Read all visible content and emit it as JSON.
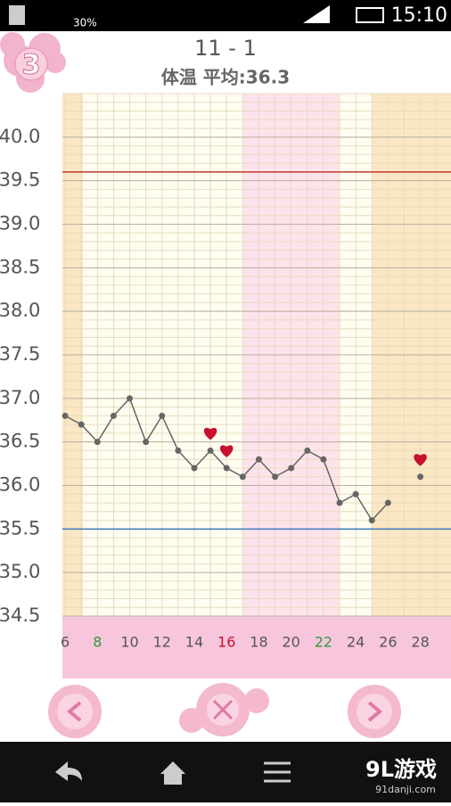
{
  "status_bar": {
    "battery_left": "30%",
    "time": "15:10"
  },
  "header": {
    "badge": "3",
    "title": "11 - 1",
    "subtitle": "体温 平均:36.3"
  },
  "chart_data": {
    "type": "line",
    "x": [
      6,
      7,
      8,
      9,
      10,
      11,
      12,
      13,
      14,
      15,
      16,
      17,
      18,
      19,
      20,
      21,
      22,
      23,
      24,
      25,
      26,
      27,
      28
    ],
    "series": [
      {
        "color": "#666666",
        "values": [
          36.8,
          36.7,
          36.5,
          36.8,
          37.0,
          36.5,
          36.8,
          36.4,
          36.2,
          36.4,
          36.2,
          36.1,
          36.3,
          36.1,
          36.2,
          36.4,
          36.3,
          35.8,
          35.9,
          35.6,
          35.8,
          null,
          36.1
        ]
      }
    ],
    "heart_days": [
      15,
      16,
      28
    ],
    "heart_color": "#c8102e",
    "reference_lines": [
      {
        "value": 39.6,
        "color": "#c0392b"
      },
      {
        "value": 35.5,
        "color": "#3a7bbf"
      }
    ],
    "xlim": [
      5.83,
      29.9
    ],
    "ylim": [
      34.5,
      40.5
    ],
    "xticks": [
      6,
      8,
      10,
      12,
      14,
      16,
      18,
      20,
      22,
      24,
      26,
      28
    ],
    "xtick_colors": [
      "#555555",
      "#2e9a3a",
      "#555555",
      "#555555",
      "#555555",
      "#c8102e",
      "#555555",
      "#555555",
      "#2e9a3a",
      "#555555",
      "#555555",
      "#555555"
    ],
    "yticks": [
      {
        "value": 34.5,
        "label": "34.5"
      },
      {
        "value": 35,
        "label": "35.0"
      },
      {
        "value": 35.5,
        "label": "35.5"
      },
      {
        "value": 36,
        "label": "36.0"
      },
      {
        "value": 36.5,
        "label": "36.5"
      },
      {
        "value": 37,
        "label": "37.0"
      },
      {
        "value": 37.5,
        "label": "37.5"
      },
      {
        "value": 38,
        "label": "38.0"
      },
      {
        "value": 38.5,
        "label": "38.5"
      },
      {
        "value": 39,
        "label": "39.0"
      },
      {
        "value": 39.5,
        "label": "39.5"
      },
      {
        "value": 40,
        "label": "40.0"
      }
    ],
    "grid": true
  },
  "watermark": {
    "logo": "9L游戏",
    "url": "91danji.com"
  }
}
